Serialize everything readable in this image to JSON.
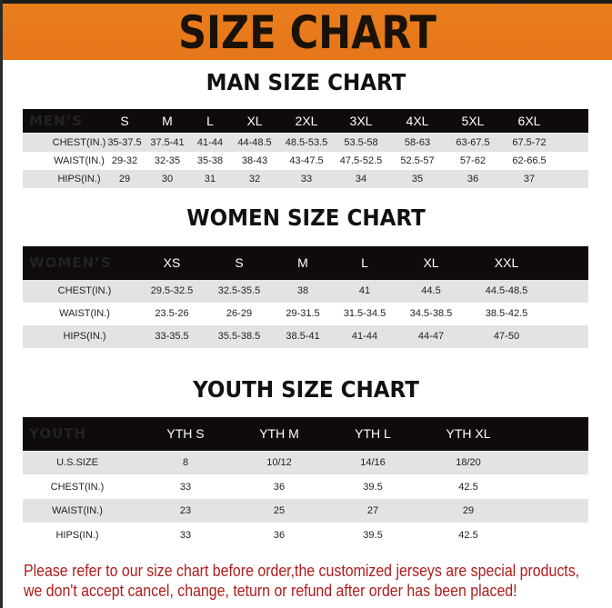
{
  "banner": {
    "title": "SIZE CHART",
    "color": "#e87a1c"
  },
  "men": {
    "title": "MAN SIZE CHART",
    "header": [
      "MEN’S",
      "S",
      "M",
      "L",
      "XL",
      "2XL",
      "3XL",
      "4XL",
      "5XL",
      "6XL"
    ],
    "rows": [
      [
        "CHEST(IN.)",
        "35-37.5",
        "37.5-41",
        "41-44",
        "44-48.5",
        "48.5-53.5",
        "53.5-58",
        "58-63",
        "63-67.5",
        "67.5-72"
      ],
      [
        "WAIST(IN.)",
        "29-32",
        "32-35",
        "35-38",
        "38-43",
        "43-47.5",
        "47.5-52.5",
        "52.5-57",
        "57-62",
        "62-66.5"
      ],
      [
        "HIPS(IN.)",
        "29",
        "30",
        "31",
        "32",
        "33",
        "34",
        "35",
        "36",
        "37"
      ]
    ]
  },
  "women": {
    "title": "WOMEN SIZE CHART",
    "header": [
      "WOMEN’S",
      "XS",
      "S",
      "M",
      "L",
      "XL",
      "XXL"
    ],
    "rows": [
      [
        "CHEST(IN.)",
        "29.5-32.5",
        "32.5-35.5",
        "38",
        "41",
        "44.5",
        "44.5-48.5"
      ],
      [
        "WAIST(IN.)",
        "23.5-26",
        "26-29",
        "29-31.5",
        "31.5-34.5",
        "34.5-38.5",
        "38.5-42.5"
      ],
      [
        "HIPS(IN.)",
        "33-35.5",
        "35.5-38.5",
        "38.5-41",
        "41-44",
        "44-47",
        "47-50"
      ]
    ]
  },
  "youth": {
    "title": "YOUTH SIZE CHART",
    "header": [
      "YOUTH",
      "YTH S",
      "YTH M",
      "YTH L",
      "YTH XL"
    ],
    "rows": [
      [
        "U.S.SIZE",
        "8",
        "10/12",
        "14/16",
        "18/20"
      ],
      [
        "CHEST(IN.)",
        "33",
        "36",
        "39.5",
        "42.5"
      ],
      [
        "WAIST(IN.)",
        "23",
        "25",
        "27",
        "29"
      ],
      [
        "HIPS(IN.)",
        "33",
        "36",
        "39.5",
        "42.5"
      ]
    ]
  },
  "notice": {
    "line1": "Please refer to our size chart before order,the customized jerseys are special products,",
    "line2": "we don't accept cancel, change, teturn or refund after order has been placed!",
    "color": "#b01c1c"
  }
}
